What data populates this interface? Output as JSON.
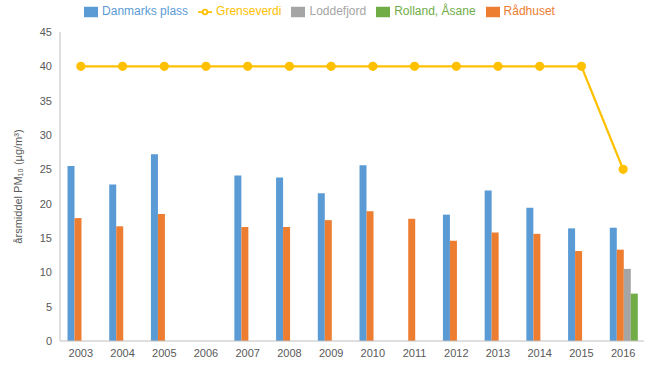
{
  "chart_data": {
    "type": "bar",
    "y_label": "årsmiddel PM₁₀ (µg/m³)",
    "categories": [
      "2003",
      "2004",
      "2005",
      "2006",
      "2007",
      "2008",
      "2009",
      "2010",
      "2011",
      "2012",
      "2013",
      "2014",
      "2015",
      "2016"
    ],
    "series": [
      {
        "name": "Danmarks plass",
        "color": "#5b9bd5",
        "type": "bar",
        "values": [
          25.5,
          22.8,
          27.2,
          null,
          24.1,
          23.8,
          21.5,
          25.6,
          null,
          18.4,
          21.9,
          19.4,
          16.4,
          16.5
        ]
      },
      {
        "name": "Rådhuset",
        "color": "#ed7d31",
        "type": "bar",
        "values": [
          17.9,
          16.7,
          18.5,
          null,
          16.6,
          16.6,
          17.6,
          18.9,
          17.8,
          14.6,
          15.8,
          15.6,
          13.1,
          13.3
        ]
      },
      {
        "name": "Loddefjord",
        "color": "#a5a5a5",
        "type": "bar",
        "values": [
          null,
          null,
          null,
          null,
          null,
          null,
          null,
          null,
          null,
          null,
          null,
          null,
          null,
          10.5
        ]
      },
      {
        "name": "Rolland, Åsane",
        "color": "#70ad47",
        "type": "bar",
        "values": [
          null,
          null,
          null,
          null,
          null,
          null,
          null,
          null,
          null,
          null,
          null,
          null,
          null,
          6.9
        ]
      },
      {
        "name": "Grenseverdi",
        "color": "#ffc000",
        "type": "line",
        "marker": "circle",
        "values": [
          40,
          40,
          40,
          40,
          40,
          40,
          40,
          40,
          40,
          40,
          40,
          40,
          40,
          25
        ]
      }
    ],
    "ylim": [
      0,
      45
    ],
    "yticks": [
      0,
      5,
      10,
      15,
      20,
      25,
      30,
      35,
      40,
      45
    ],
    "grid": false,
    "legend": "top"
  }
}
